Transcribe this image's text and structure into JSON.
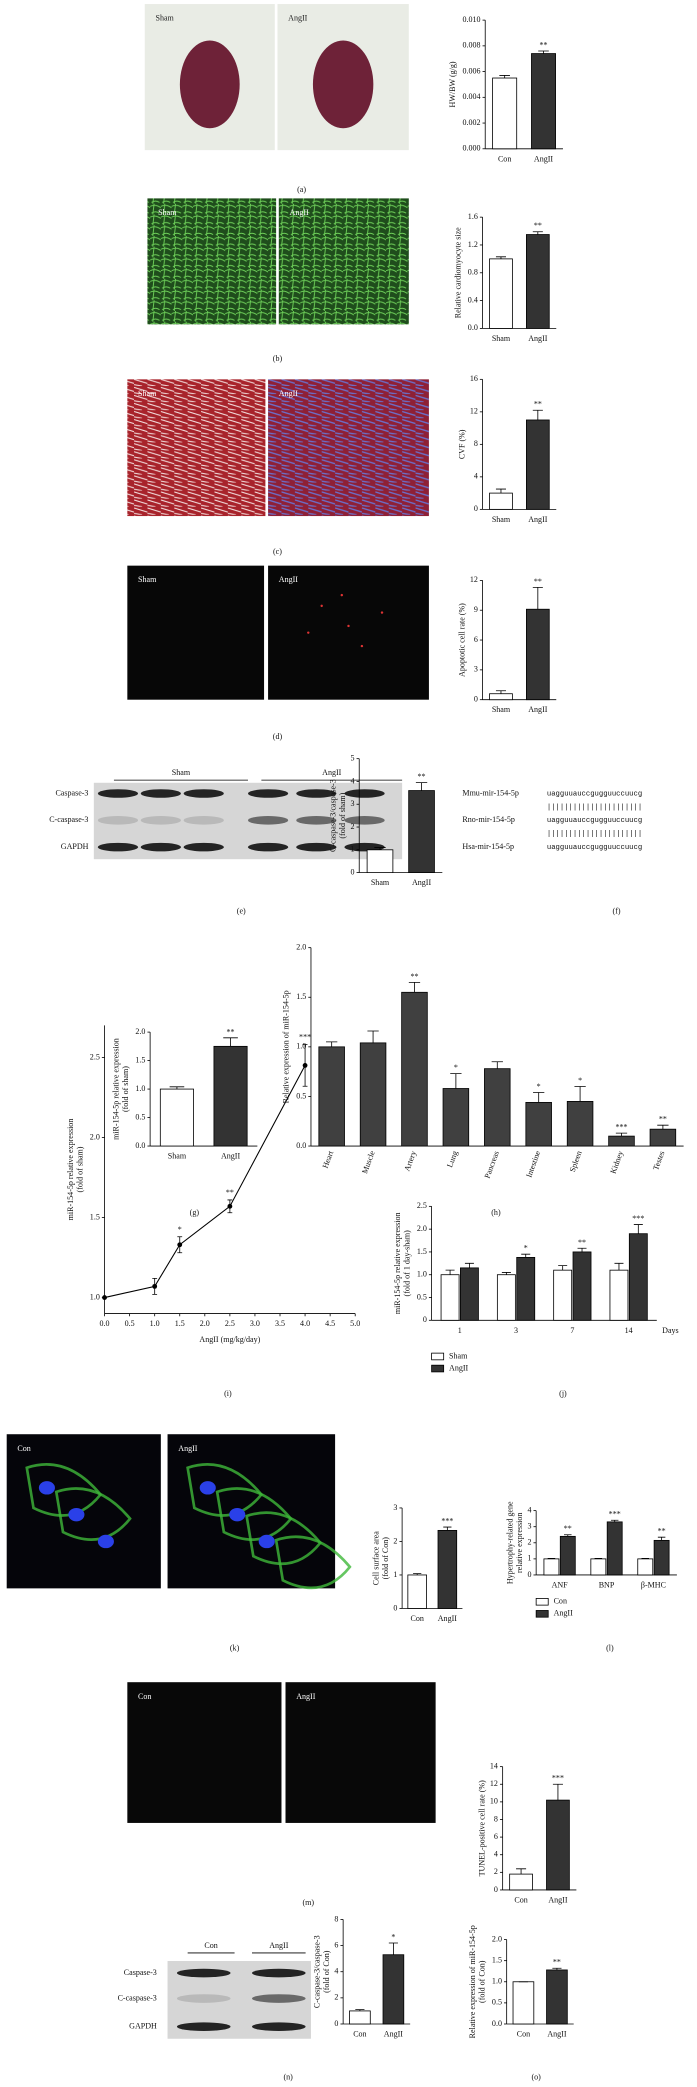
{
  "chart_data": [
    {
      "type": "bar",
      "ylabel": [
        "HW/BW (g/g)"
      ],
      "categories": [
        "Con",
        "AngII"
      ],
      "values": [
        0.0055,
        0.0074
      ],
      "errors": [
        0.0002,
        0.0002
      ],
      "colors": [
        "#ffffff",
        "#333333"
      ],
      "annotations": [
        null,
        "**"
      ],
      "ylim": [
        0,
        0.01
      ],
      "yticks": [
        {
          "value": 0,
          "label": "0.000"
        },
        0.002,
        0.004,
        0.006,
        0.008,
        {
          "value": 0.01,
          "label": "0.010"
        }
      ]
    },
    {
      "type": "bar",
      "ylabel": [
        "Relative cardiomyocyte size"
      ],
      "categories": [
        "Sham",
        "AngII"
      ],
      "values": [
        1.0,
        1.35
      ],
      "errors": [
        0.03,
        0.04
      ],
      "colors": [
        "#ffffff",
        "#333333"
      ],
      "annotations": [
        null,
        "**"
      ],
      "ylim": [
        0,
        1.6
      ],
      "yticks": [
        {
          "value": 0,
          "label": "0.0"
        },
        0.4,
        0.8,
        1.2,
        1.6
      ]
    },
    {
      "type": "bar",
      "ylabel": [
        "CVF (%)"
      ],
      "categories": [
        "Sham",
        "AngII"
      ],
      "values": [
        2.0,
        11.0
      ],
      "errors": [
        0.5,
        1.2
      ],
      "colors": [
        "#ffffff",
        "#333333"
      ],
      "annotations": [
        null,
        "**"
      ],
      "ylim": [
        0,
        16
      ],
      "yticks": [
        0,
        4,
        8,
        12,
        16
      ]
    },
    {
      "type": "bar",
      "ylabel": [
        "Apoptotic cell rate (%)"
      ],
      "categories": [
        "Sham",
        "AngII"
      ],
      "values": [
        0.6,
        9.1
      ],
      "errors": [
        0.3,
        2.2
      ],
      "colors": [
        "#ffffff",
        "#333333"
      ],
      "annotations": [
        null,
        "**"
      ],
      "ylim": [
        0,
        12
      ],
      "yticks": [
        0,
        3,
        6,
        9,
        12
      ]
    },
    {
      "type": "bar",
      "ylabel": [
        "C-caspase-3/caspase-3",
        "(fold of sham)"
      ],
      "categories": [
        "Sham",
        "AngII"
      ],
      "values": [
        1.0,
        3.6
      ],
      "errors": [
        0.1,
        0.35
      ],
      "colors": [
        "#ffffff",
        "#333333"
      ],
      "annotations": [
        null,
        "**"
      ],
      "ylim": [
        0,
        5
      ],
      "yticks": [
        0,
        1,
        2,
        3,
        4,
        5
      ]
    },
    {
      "type": "bar",
      "ylabel": [
        "miR-154-5p relative expression",
        "(fold of sham)"
      ],
      "categories": [
        "Sham",
        "AngII"
      ],
      "values": [
        1.0,
        1.75
      ],
      "errors": [
        0.04,
        0.15
      ],
      "colors": [
        "#ffffff",
        "#333333"
      ],
      "annotations": [
        null,
        "**"
      ],
      "ylim": [
        0,
        2.0
      ],
      "yticks": [
        {
          "value": 0,
          "label": "0.0"
        },
        0.5,
        {
          "value": 1,
          "label": "1.0"
        },
        1.5,
        {
          "value": 2,
          "label": "2.0"
        }
      ]
    },
    {
      "type": "bar",
      "ylabel": [
        "Relative expression of miR-154-5p"
      ],
      "categories": [
        "Heart",
        "Muscle",
        "Artery",
        "Lung",
        "Pancreas",
        "Intestine",
        "Spleen",
        "Kidney",
        "Testes"
      ],
      "values": [
        1.0,
        1.04,
        1.55,
        0.58,
        0.78,
        0.44,
        0.45,
        0.1,
        0.17
      ],
      "errors": [
        0.05,
        0.12,
        0.1,
        0.15,
        0.07,
        0.1,
        0.15,
        0.03,
        0.04
      ],
      "color": "#404040",
      "annotations": [
        null,
        null,
        "**",
        "*",
        null,
        "*",
        "*",
        "***",
        "**"
      ],
      "rotate_labels": true,
      "ylim": [
        0,
        2.0
      ],
      "yticks": [
        {
          "value": 0,
          "label": "0.0"
        },
        0.5,
        {
          "value": 1,
          "label": "1.0"
        },
        1.5,
        {
          "value": 2,
          "label": "2.0"
        }
      ]
    },
    {
      "type": "line",
      "ylabel": [
        "miR-154-5p relative expression",
        "(fold of sham)"
      ],
      "xlabel": "AngII (mg/kg/day)",
      "x": [
        0,
        1.0,
        1.5,
        2.5,
        4.0
      ],
      "values": [
        1.0,
        1.07,
        1.33,
        1.57,
        2.45
      ],
      "errors": [
        null,
        0.05,
        0.05,
        0.04,
        0.13
      ],
      "annotations": [
        null,
        null,
        "*",
        "**",
        "***"
      ],
      "color": "#000000",
      "xlim": [
        0,
        5.0
      ],
      "xticks": [
        {
          "value": 0,
          "label": "0.0"
        },
        0.5,
        {
          "value": 1,
          "label": "1.0"
        },
        1.5,
        {
          "value": 2,
          "label": "2.0"
        },
        2.5,
        {
          "value": 3,
          "label": "3.0"
        },
        3.5,
        {
          "value": 4,
          "label": "4.0"
        },
        4.5,
        {
          "value": 5,
          "label": "5.0"
        }
      ],
      "ylim": [
        0.9,
        2.7
      ],
      "yticks": [
        {
          "value": 1,
          "label": "1.0"
        },
        1.5,
        {
          "value": 2,
          "label": "2.0"
        },
        2.5
      ]
    },
    {
      "type": "grouped_bar",
      "ylabel": [
        "miR-154-5p relative expression",
        "(fold of 1 day-sham)"
      ],
      "xlabel": "Days",
      "categories": [
        "1",
        "3",
        "7",
        "14"
      ],
      "series": [
        {
          "name": "Sham",
          "color": "#ffffff",
          "values": [
            1.0,
            1.0,
            1.1,
            1.1
          ],
          "errors": [
            0.1,
            0.05,
            0.1,
            0.15
          ],
          "annotations": [
            null,
            null,
            null,
            null
          ]
        },
        {
          "name": "AngII",
          "color": "#333333",
          "values": [
            1.15,
            1.38,
            1.5,
            1.9
          ],
          "errors": [
            0.1,
            0.07,
            0.08,
            0.2
          ],
          "annotations": [
            null,
            "*",
            "**",
            "***"
          ]
        }
      ],
      "ylim": [
        0,
        2.5
      ],
      "yticks": [
        0,
        0.5,
        {
          "value": 1,
          "label": "1.0"
        },
        1.5,
        {
          "value": 2,
          "label": "2.0"
        },
        2.5
      ],
      "legend": "below"
    },
    {
      "type": "bar",
      "ylabel": [
        "Cell surface area",
        "(fold of Con)"
      ],
      "categories": [
        "Con",
        "AngII"
      ],
      "values": [
        1.0,
        2.33
      ],
      "errors": [
        0.04,
        0.1
      ],
      "colors": [
        "#ffffff",
        "#333333"
      ],
      "annotations": [
        null,
        "***"
      ],
      "ylim": [
        0,
        3
      ],
      "yticks": [
        0,
        1,
        2,
        3
      ]
    },
    {
      "type": "grouped_bar",
      "ylabel": [
        "Hypertrophy-related gene",
        "relative expression"
      ],
      "categories": [
        "ANF",
        "BNP",
        "β-MHC"
      ],
      "series": [
        {
          "name": "Con",
          "color": "#ffffff",
          "values": [
            1.0,
            1.0,
            1.0
          ],
          "errors": [
            0.03,
            0.03,
            0.03
          ],
          "annotations": [
            null,
            null,
            null
          ]
        },
        {
          "name": "AngII",
          "color": "#333333",
          "values": [
            2.4,
            3.3,
            2.15
          ],
          "errors": [
            0.1,
            0.1,
            0.2
          ],
          "annotations": [
            "**",
            "***",
            "**"
          ]
        }
      ],
      "ylim": [
        0,
        4
      ],
      "yticks": [
        0,
        1,
        2,
        3,
        4
      ],
      "legend": "below"
    },
    {
      "type": "bar",
      "ylabel": [
        "TUNEL-positive cell rate (%)"
      ],
      "categories": [
        "Con",
        "AngII"
      ],
      "values": [
        1.8,
        10.2
      ],
      "errors": [
        0.6,
        1.8
      ],
      "colors": [
        "#ffffff",
        "#333333"
      ],
      "annotations": [
        null,
        "***"
      ],
      "ylim": [
        0,
        14
      ],
      "yticks": [
        0,
        2,
        4,
        6,
        8,
        10,
        12,
        14
      ]
    },
    {
      "type": "bar",
      "ylabel": [
        "C-caspase-3/caspase-3",
        "(fold of Con)"
      ],
      "categories": [
        "Con",
        "AngII"
      ],
      "values": [
        1.0,
        5.3
      ],
      "errors": [
        0.1,
        0.9
      ],
      "colors": [
        "#ffffff",
        "#333333"
      ],
      "annotations": [
        null,
        "*"
      ],
      "ylim": [
        0,
        8
      ],
      "yticks": [
        0,
        2,
        4,
        6,
        8
      ]
    },
    {
      "type": "bar",
      "ylabel": [
        "Relative expression of miR-154-5p",
        "(fold of Con)"
      ],
      "categories": [
        "Con",
        "AngII"
      ],
      "values": [
        1.0,
        1.28
      ],
      "errors": [
        0,
        0.04
      ],
      "colors": [
        "#ffffff",
        "#333333"
      ],
      "annotations": [
        null,
        "**"
      ],
      "ylim": [
        0,
        2.0
      ],
      "yticks": [
        {
          "value": 0,
          "label": "0.0"
        },
        0.5,
        {
          "value": 1,
          "label": "1.0"
        },
        1.5,
        {
          "value": 2,
          "label": "2.0"
        }
      ]
    }
  ],
  "figure": {
    "panel_labels": [
      "(a)",
      "(b)",
      "(c)",
      "(d)",
      "(e)",
      "(f)",
      "(g)",
      "(h)",
      "(i)",
      "(j)",
      "(k)",
      "(l)",
      "(m)",
      "(n)",
      "(o)"
    ],
    "image_labels": [
      [
        "Sham",
        "AngII"
      ],
      [
        "Sham",
        "AngII"
      ],
      [
        "Sham",
        "AngII"
      ],
      [
        "Sham",
        "AngII"
      ],
      [
        "Con",
        "AngII"
      ],
      [
        "Con",
        "AngII"
      ]
    ],
    "blots": [
      {
        "groups": [
          "Sham",
          "AngII"
        ],
        "rows": [
          "Caspase-3",
          "C-caspase-3",
          "GAPDH"
        ]
      },
      {
        "groups": [
          "Con",
          "AngII"
        ],
        "rows": [
          "Caspase-3",
          "C-caspase-3",
          "GAPDH"
        ]
      }
    ],
    "alignment": {
      "rows": [
        {
          "name": "Mmu-mir-154-5p",
          "sequence": "uagguuauccgugguuccuucg"
        },
        {
          "name": "Rno-mir-154-5p",
          "sequence": "uagguuauccgugguuccuucg"
        },
        {
          "name": "Hsa-mir-154-5p",
          "sequence": "uagguuauccgugguuccuucg"
        }
      ],
      "match": "||||||||||||||||||||||"
    }
  }
}
